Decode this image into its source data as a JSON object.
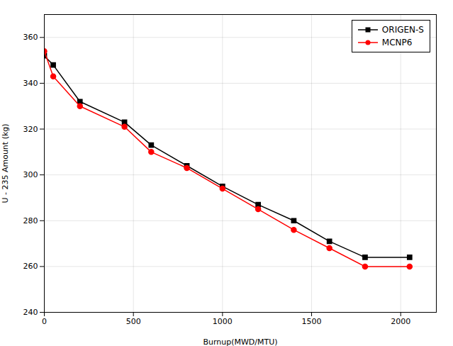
{
  "chart_data": {
    "type": "line",
    "x": [
      0,
      50,
      200,
      450,
      600,
      800,
      1000,
      1200,
      1400,
      1600,
      1800,
      2050
    ],
    "series": [
      {
        "name": "ORIGEN-S",
        "color": "#000000",
        "marker": "square",
        "values": [
          352,
          348,
          332,
          323,
          313,
          304,
          295,
          287,
          280,
          271,
          264,
          264
        ]
      },
      {
        "name": "MCNP6",
        "color": "#ff0000",
        "marker": "circle",
        "values": [
          354,
          343,
          330,
          321,
          310,
          303,
          294,
          285,
          276,
          268,
          260,
          260
        ]
      }
    ],
    "xlabel": "Burnup(MWD/MTU)",
    "ylabel": "U - 235 Amount (kg)",
    "xlim": [
      0,
      2200
    ],
    "ylim": [
      240,
      370
    ],
    "xticks": [
      0,
      500,
      1000,
      1500,
      2000
    ],
    "yticks": [
      240,
      260,
      280,
      300,
      320,
      340,
      360
    ],
    "grid": true,
    "legend": "top-right"
  }
}
